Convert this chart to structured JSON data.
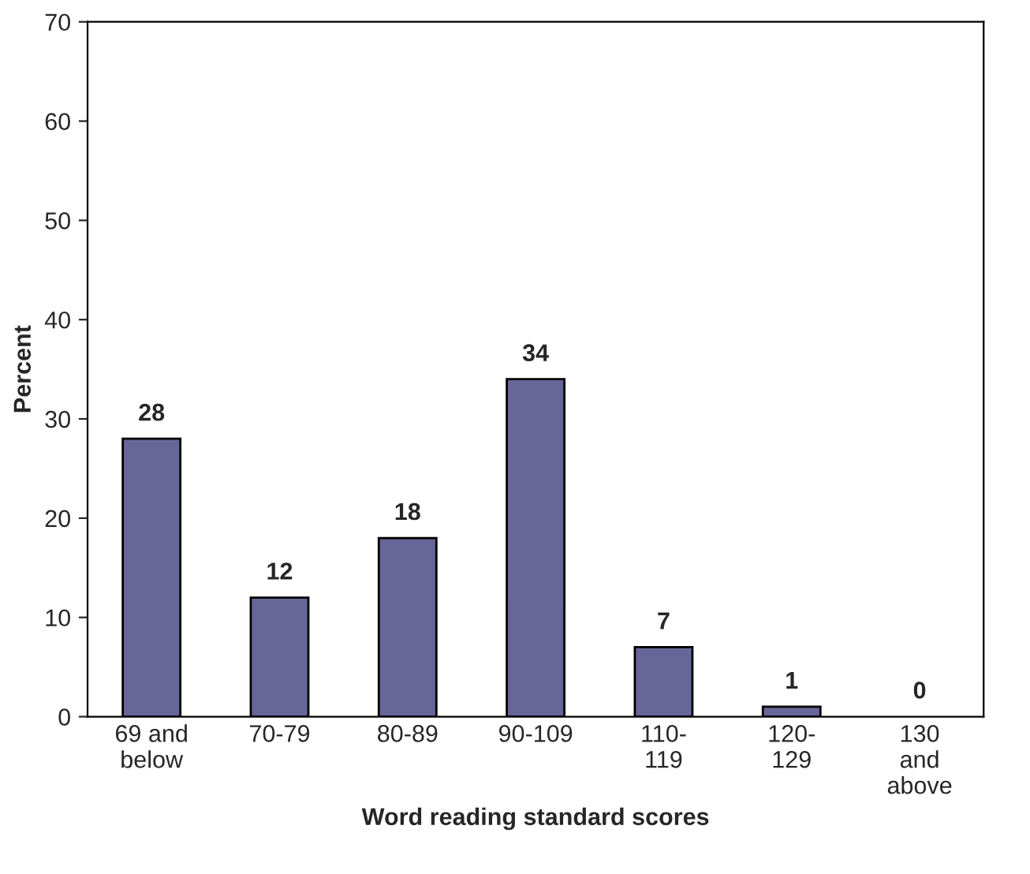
{
  "chart_data": {
    "type": "bar",
    "categories": [
      "69 and\nbelow",
      "70-79",
      "80-89",
      "90-109",
      "110-\n119",
      "120-\n129",
      "130\nand\nabove"
    ],
    "values": [
      28,
      12,
      18,
      34,
      7,
      1,
      0
    ],
    "color": "#666699",
    "data_labels": true,
    "xlabel": "Word reading standard scores",
    "ylabel": "Percent",
    "ylim": [
      0,
      70
    ],
    "yticks": [
      0,
      10,
      20,
      30,
      40,
      50,
      60,
      70
    ],
    "grid": false,
    "legend": false
  }
}
